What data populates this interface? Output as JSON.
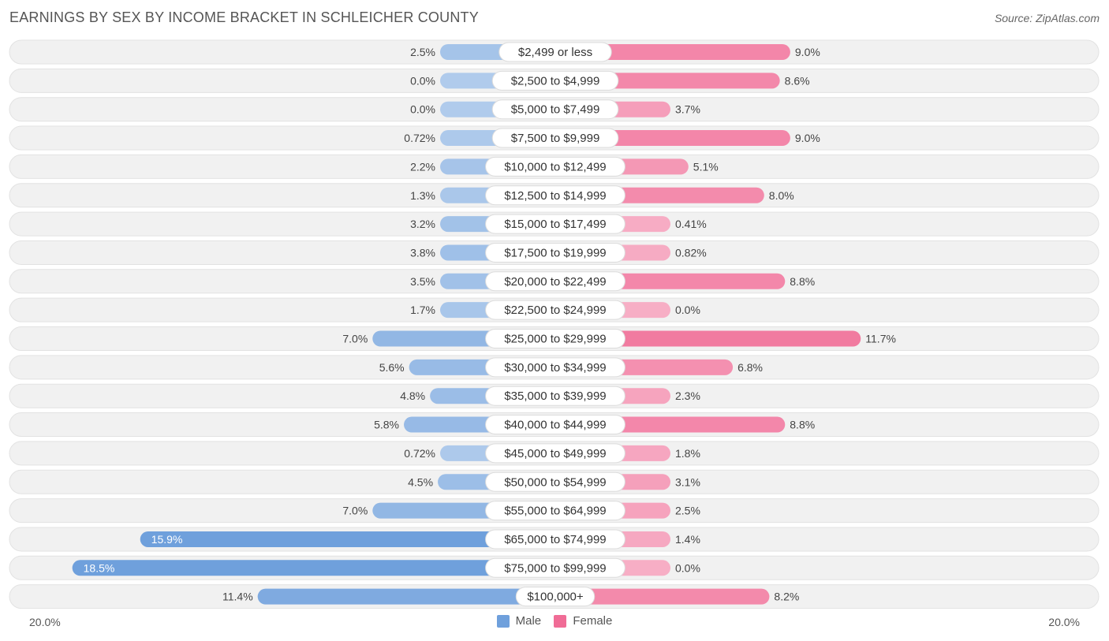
{
  "chart_data": {
    "type": "bar",
    "orientation": "horizontal-diverging",
    "title": "EARNINGS BY SEX BY INCOME BRACKET IN SCHLEICHER COUNTY",
    "source": "Source: ZipAtlas.com",
    "categories": [
      "$2,499 or less",
      "$2,500 to $4,999",
      "$5,000 to $7,499",
      "$7,500 to $9,999",
      "$10,000 to $12,499",
      "$12,500 to $14,999",
      "$15,000 to $17,499",
      "$17,500 to $19,999",
      "$20,000 to $22,499",
      "$22,500 to $24,999",
      "$25,000 to $29,999",
      "$30,000 to $34,999",
      "$35,000 to $39,999",
      "$40,000 to $44,999",
      "$45,000 to $49,999",
      "$50,000 to $54,999",
      "$55,000 to $64,999",
      "$65,000 to $74,999",
      "$75,000 to $99,999",
      "$100,000+"
    ],
    "series": [
      {
        "name": "Male",
        "color": "#6fa0dc",
        "values": [
          2.5,
          0.0,
          0.0,
          0.72,
          2.2,
          1.3,
          3.2,
          3.8,
          3.5,
          1.7,
          7.0,
          5.6,
          4.8,
          5.8,
          0.72,
          4.5,
          7.0,
          15.9,
          18.5,
          11.4
        ],
        "labels": [
          "2.5%",
          "0.0%",
          "0.0%",
          "0.72%",
          "2.2%",
          "1.3%",
          "3.2%",
          "3.8%",
          "3.5%",
          "1.7%",
          "7.0%",
          "5.6%",
          "4.8%",
          "5.8%",
          "0.72%",
          "4.5%",
          "7.0%",
          "15.9%",
          "18.5%",
          "11.4%"
        ]
      },
      {
        "name": "Female",
        "color": "#f06c96",
        "values": [
          9.0,
          8.6,
          3.7,
          9.0,
          5.1,
          8.0,
          0.41,
          0.82,
          8.8,
          0.0,
          11.7,
          6.8,
          2.3,
          8.8,
          1.8,
          3.1,
          2.5,
          1.4,
          0.0,
          8.2
        ],
        "labels": [
          "9.0%",
          "8.6%",
          "3.7%",
          "9.0%",
          "5.1%",
          "8.0%",
          "0.41%",
          "0.82%",
          "8.8%",
          "0.0%",
          "11.7%",
          "6.8%",
          "2.3%",
          "8.8%",
          "1.8%",
          "3.1%",
          "2.5%",
          "1.4%",
          "0.0%",
          "8.2%"
        ]
      }
    ],
    "xlim": [
      -20,
      20
    ],
    "axis_labels": {
      "left": "20.0%",
      "right": "20.0%"
    },
    "legend": [
      "Male",
      "Female"
    ]
  }
}
